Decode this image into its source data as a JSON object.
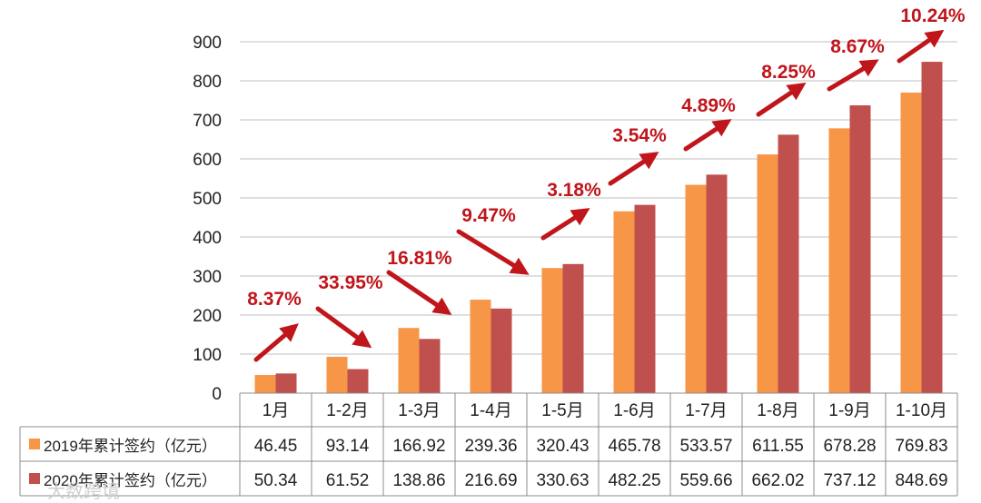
{
  "chart_data": {
    "type": "bar",
    "categories": [
      "1月",
      "1-2月",
      "1-3月",
      "1-4月",
      "1-5月",
      "1-6月",
      "1-7月",
      "1-8月",
      "1-9月",
      "1-10月"
    ],
    "series": [
      {
        "name": "2019年累计签约（亿元）",
        "color": "#f79646",
        "values": [
          46.45,
          93.14,
          166.92,
          239.36,
          320.43,
          465.78,
          533.57,
          611.55,
          678.28,
          769.83
        ]
      },
      {
        "name": "2020年累计签约（亿元）",
        "color": "#c0504d",
        "values": [
          50.34,
          61.52,
          138.86,
          216.69,
          330.63,
          482.25,
          559.66,
          662.02,
          737.12,
          848.69
        ]
      }
    ],
    "growth_labels": [
      "8.37%",
      "33.95%",
      "16.81%",
      "9.47%",
      "3.18%",
      "3.54%",
      "4.89%",
      "8.25%",
      "8.67%",
      "10.24%"
    ],
    "arrow_color": "#c0151b",
    "ylim": [
      0,
      900
    ],
    "yticks": [
      0,
      100,
      200,
      300,
      400,
      500,
      600,
      700,
      800,
      900
    ],
    "grid": true,
    "legend": "data table below chart"
  },
  "watermark": "大数跨境"
}
